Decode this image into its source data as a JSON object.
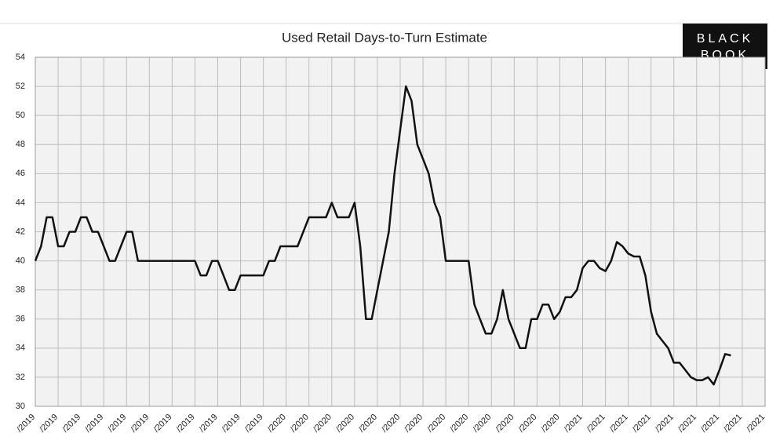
{
  "chart_data": {
    "type": "line",
    "title": "Used Retail Days-to-Turn Estimate",
    "logo": [
      "BLACK",
      "BOOK"
    ],
    "categories": [
      "/2019",
      null,
      null,
      null,
      "/2019",
      null,
      null,
      null,
      "/2019",
      null,
      null,
      null,
      "/2019",
      null,
      null,
      null,
      "/2019",
      null,
      null,
      null,
      "/2019",
      null,
      null,
      null,
      "/2019",
      null,
      null,
      null,
      "/2019",
      null,
      null,
      null,
      "/2019",
      null,
      null,
      null,
      "/2019",
      null,
      null,
      null,
      "/2019",
      null,
      null,
      null,
      "/2020",
      null,
      null,
      null,
      "/2020",
      null,
      null,
      null,
      "/2020",
      null,
      null,
      null,
      "/2020",
      null,
      null,
      null,
      "/2020",
      null,
      null,
      null,
      "/2020",
      null,
      null,
      null,
      "/2020",
      null,
      null,
      null,
      "/2020",
      null,
      null,
      null,
      "/2020",
      null,
      null,
      null,
      "/2020",
      null,
      null,
      null,
      "/2020",
      null,
      null,
      null,
      "/2020",
      null,
      null,
      null,
      "/2020",
      null,
      null,
      null,
      "/2021",
      null,
      null,
      null,
      "/2021",
      null,
      null,
      null,
      "/2021",
      null,
      null,
      null,
      "/2021",
      null,
      null,
      null,
      "/2021",
      null,
      null,
      null,
      "/2021",
      null,
      null,
      null,
      "/2021",
      null,
      null,
      null,
      "/2021",
      null,
      null,
      null,
      "/2021"
    ],
    "series": [
      {
        "name": "Days-to-Turn",
        "color": "#111111",
        "values": [
          40,
          41,
          43,
          43,
          41,
          41,
          42,
          42,
          43,
          43,
          42,
          42,
          41,
          40,
          40,
          41,
          42,
          42,
          40,
          40,
          40,
          40,
          40,
          40,
          40,
          40,
          40,
          40,
          40,
          39,
          39,
          40,
          40,
          39,
          38,
          38,
          39,
          39,
          39,
          39,
          39,
          40,
          40,
          41,
          41,
          41,
          41,
          42,
          43,
          43,
          43,
          43,
          44,
          43,
          43,
          43,
          44,
          41,
          36,
          36,
          38,
          40,
          42,
          46,
          49,
          52,
          51,
          48,
          47,
          46,
          44,
          43,
          40,
          40,
          40,
          40,
          40,
          37,
          36,
          35,
          35,
          36,
          38,
          36,
          35,
          34,
          34,
          36,
          36,
          37,
          37,
          36,
          36.5,
          37.5,
          37.5,
          38,
          39.5,
          40,
          40,
          39.5,
          39.3,
          40,
          41.3,
          41,
          40.5,
          40.3,
          40.3,
          39,
          36.5,
          35,
          34.5,
          34,
          33,
          33,
          32.5,
          32,
          31.8,
          31.8,
          32,
          31.5,
          32.5,
          33.6,
          33.5,
          null,
          null,
          null,
          null,
          null,
          null
        ]
      }
    ],
    "ylim": [
      30,
      54
    ],
    "yticks": [
      30,
      32,
      34,
      36,
      38,
      40,
      42,
      44,
      46,
      48,
      50,
      52,
      54
    ],
    "grid": true
  }
}
